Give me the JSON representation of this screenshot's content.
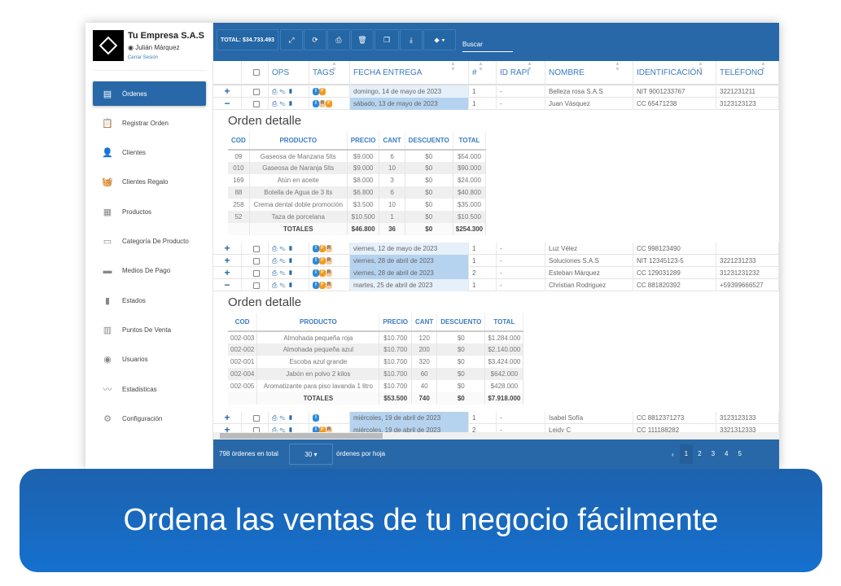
{
  "sidebar": {
    "company": "Tu Empresa S.A.S",
    "user": "Julián Márquez",
    "logout": "Cerrar Sesión",
    "items": [
      {
        "label": "Órdenes",
        "icon": "orders-icon",
        "active": true
      },
      {
        "label": "Registrar Orden",
        "icon": "clipboard-icon"
      },
      {
        "label": "Clientes",
        "icon": "user-icon"
      },
      {
        "label": "Clientes Regalo",
        "icon": "basket-icon"
      },
      {
        "label": "Productos",
        "icon": "products-icon"
      },
      {
        "label": "Categoría De Producto",
        "icon": "category-icon"
      },
      {
        "label": "Medios De Pago",
        "icon": "credit-card-icon"
      },
      {
        "label": "Estados",
        "icon": "states-icon"
      },
      {
        "label": "Puntos De Venta",
        "icon": "building-icon"
      },
      {
        "label": "Usuarios",
        "icon": "user-circle-icon"
      },
      {
        "label": "Estadisticas",
        "icon": "chart-line-icon"
      },
      {
        "label": "Configuración",
        "icon": "gear-icon"
      }
    ]
  },
  "toolbar": {
    "total": "TOTAL: $34.733.493",
    "search_placeholder": "Buscar"
  },
  "columns": [
    "",
    "",
    "OPS",
    "TAGS",
    "FECHA ENTREGA",
    "#",
    "ID RAPI",
    "NOMBRE",
    "IDENTIFICACIÓN",
    "TELÉFONO"
  ],
  "orders": [
    {
      "exp": "+",
      "tags": [
        "I",
        "F"
      ],
      "fecha": "domingo, 14 de mayo de 2023",
      "num": "1",
      "rapi": "-",
      "nombre": "Belleza rosa S.A.S",
      "id": "NIT 9001233767",
      "tel": "3221231211",
      "hl": "hl"
    },
    {
      "exp": "−",
      "tags": [
        "I",
        "R",
        "F"
      ],
      "fecha": "sábado, 13 de mayo de 2023",
      "num": "1",
      "rapi": "-",
      "nombre": "Juan Vásquez",
      "id": "CC 65471238",
      "tel": "3123123123",
      "hl": "hl2"
    },
    {
      "exp": "+",
      "tags": [
        "I",
        "F",
        "R"
      ],
      "fecha": "viernes, 12 de mayo de 2023",
      "num": "1",
      "rapi": "-",
      "nombre": "Luz Vélez",
      "id": "CC 998123490",
      "tel": "",
      "hl": "hl"
    },
    {
      "exp": "+",
      "tags": [
        "I",
        "F",
        "R"
      ],
      "fecha": "viernes, 28 de abril de 2023",
      "num": "1",
      "rapi": "-",
      "nombre": "Soluciones S.A.S",
      "id": "NIT 12345123-5",
      "tel": "3221231233",
      "hl": "hl2"
    },
    {
      "exp": "+",
      "tags": [
        "I",
        "F",
        "R"
      ],
      "fecha": "viernes, 28 de abril de 2023",
      "num": "2",
      "rapi": "-",
      "nombre": "Esteban Márquez",
      "id": "CC 129031289",
      "tel": "31231231232",
      "hl": "hl2"
    },
    {
      "exp": "−",
      "tags": [
        "I",
        "F",
        "R"
      ],
      "fecha": "martes, 25 de abril de 2023",
      "num": "1",
      "rapi": "-",
      "nombre": "Christian Rodriguez",
      "id": "CC 881820392",
      "tel": "+59399666527",
      "hl": "hl"
    },
    {
      "exp": "+",
      "tags": [
        "I"
      ],
      "fecha": "miércoles, 19 de abril de 2023",
      "num": "1",
      "rapi": "-",
      "nombre": "Isabel Sofía",
      "id": "CC 8812371273",
      "tel": "3123123133",
      "hl": "hl2"
    },
    {
      "exp": "+",
      "tags": [
        "I",
        "F",
        "R"
      ],
      "fecha": "miércoles, 19 de abril de 2023",
      "num": "2",
      "rapi": "-",
      "nombre": "Leidy C",
      "id": "CC 111188282",
      "tel": "3321312333",
      "hl": "hl2"
    }
  ],
  "details": [
    {
      "title": "Orden detalle",
      "headers": [
        "COD",
        "PRODUCTO",
        "PRECIO",
        "CANT",
        "DESCUENTO",
        "TOTAL"
      ],
      "rows": [
        [
          "09",
          "Gaseosa de Manzana 5lts",
          "$9.000",
          "6",
          "$0",
          "$54.000"
        ],
        [
          "010",
          "Gaseosa de Naranja 5lts",
          "$9.000",
          "10",
          "$0",
          "$90.000"
        ],
        [
          "169",
          "Atún en aceite",
          "$8.000",
          "3",
          "$0",
          "$24.000"
        ],
        [
          "88",
          "Botella de Agua de 3 lts",
          "$6.800",
          "6",
          "$0",
          "$40.800"
        ],
        [
          "258",
          "Crema dental doble promoción",
          "$3.500",
          "10",
          "$0",
          "$35.000"
        ],
        [
          "52",
          "Taza de porcelana",
          "$10.500",
          "1",
          "$0",
          "$10.500"
        ]
      ],
      "totals": [
        "",
        "TOTALES",
        "$46.800",
        "36",
        "$0",
        "$254.300"
      ]
    },
    {
      "title": "Orden detalle",
      "headers": [
        "COD",
        "PRODUCTO",
        "PRECIO",
        "CANT",
        "DESCUENTO",
        "TOTAL"
      ],
      "rows": [
        [
          "002-003",
          "Almohada pequeña roja",
          "$10.700",
          "120",
          "$0",
          "$1.284.000"
        ],
        [
          "002-002",
          "Almohada pequeña azul",
          "$10.700",
          "200",
          "$0",
          "$2.140.000"
        ],
        [
          "002-001",
          "Escoba azul grande",
          "$10.700",
          "320",
          "$0",
          "$3.424.000"
        ],
        [
          "002-004",
          "Jabón en polvo 2 kilos",
          "$10.700",
          "60",
          "$0",
          "$642.000"
        ],
        [
          "002-005",
          "Aromatizante para piso lavanda 1 litro",
          "$10.700",
          "40",
          "$0",
          "$428.000"
        ]
      ],
      "totals": [
        "",
        "TOTALES",
        "$53.500",
        "740",
        "$0",
        "$7.918.000"
      ]
    }
  ],
  "footer": {
    "total_text": "798 órdenes en total",
    "per_page": "30",
    "per_page_label": "órdenes por hoja",
    "pages": [
      "1",
      "2",
      "3",
      "4",
      "5"
    ],
    "current_page": "1",
    "prev": "‹"
  },
  "banner": {
    "text": "Ordena las ventas de tu negocio fácilmente"
  },
  "colors": {
    "primary": "#2868a8",
    "tag_i": "#2b8ae0",
    "tag_f": "#f49a1c",
    "tag_r": "#f7c89a"
  }
}
